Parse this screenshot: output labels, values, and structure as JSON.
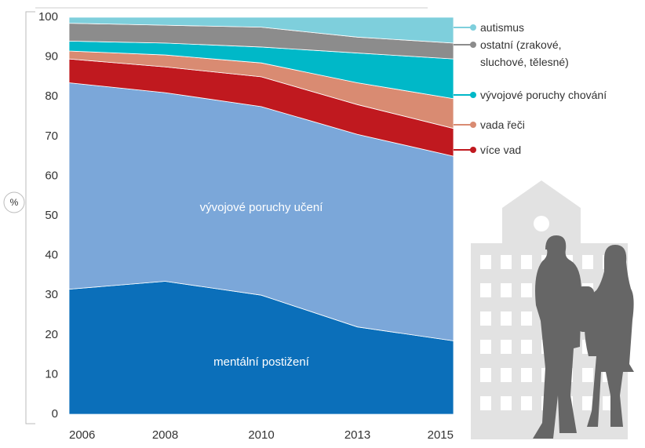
{
  "chart_data": {
    "type": "stacked-area",
    "y_label": "%",
    "categories": [
      "2006",
      "2008",
      "2010",
      "2013",
      "2015"
    ],
    "ylim": [
      0,
      100
    ],
    "yticks": [
      0,
      10,
      20,
      30,
      40,
      50,
      60,
      70,
      80,
      90,
      100
    ],
    "series": [
      {
        "name": "mentální postižení",
        "color": "#0b6fba",
        "values": [
          31.5,
          33.5,
          30,
          22,
          18.5
        ]
      },
      {
        "name": "vývojové poruchy učení",
        "color": "#7ba7d9",
        "values": [
          52,
          47.5,
          47.5,
          48.5,
          46.5
        ]
      },
      {
        "name": "více vad",
        "color": "#c0191f",
        "values": [
          6,
          6.5,
          7.5,
          7.5,
          7
        ]
      },
      {
        "name": "vada řeči",
        "color": "#d98b72",
        "values": [
          2,
          3,
          3.5,
          5.5,
          7.5
        ]
      },
      {
        "name": "vývojové poruchy chování",
        "color": "#00b8c8",
        "values": [
          2.5,
          3,
          4,
          7.5,
          10
        ]
      },
      {
        "name": "ostatní (zrakové, sluchové, tělesné)",
        "color": "#8c8c8c",
        "values": [
          4.5,
          4.5,
          5,
          4,
          4
        ]
      },
      {
        "name": "autismus",
        "color": "#7ecfdc",
        "values": [
          1.5,
          2,
          2.5,
          5,
          6.5
        ]
      }
    ]
  }
}
